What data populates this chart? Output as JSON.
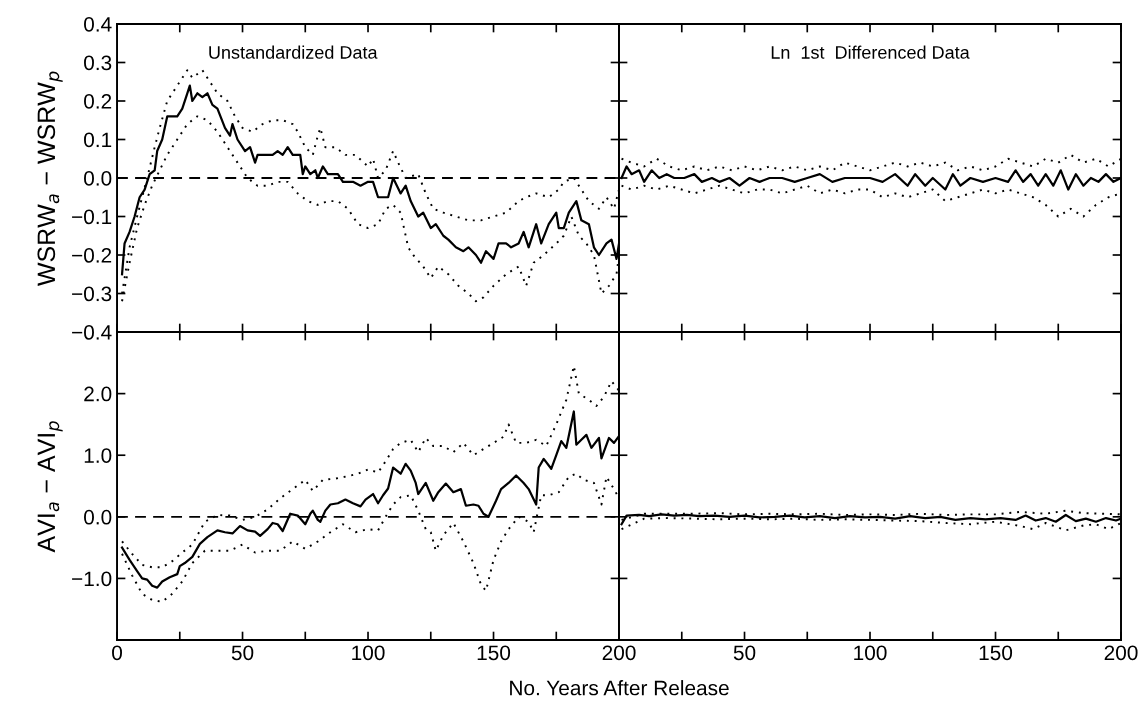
{
  "chart_data": [
    {
      "type": "line",
      "title": "Unstandardized Data",
      "ylabel": "WSRW$_{a}$ − WSRW$_{p}$",
      "xlim": [
        0,
        200
      ],
      "ylim": [
        -0.4,
        0.4
      ],
      "xticks": [
        0,
        {
          "value": 25,
          "label": null
        },
        50,
        {
          "value": 75,
          "label": null
        },
        100,
        {
          "value": 125,
          "label": null
        },
        150,
        {
          "value": 175,
          "label": null
        },
        200
      ],
      "yticks": [
        {
          "value": -0.4,
          "label": "−0.4"
        },
        {
          "value": -0.3,
          "label": "−0.3"
        },
        {
          "value": -0.2,
          "label": "−0.2"
        },
        {
          "value": -0.1,
          "label": "−0.1"
        },
        {
          "value": 0,
          "label": "0.0"
        },
        0.1,
        0.2,
        0.3,
        0.4
      ],
      "tick_labels": "y",
      "ref_lines": [
        {
          "axis": "y",
          "value": 0,
          "color": "#000000",
          "line_style": "dashed"
        }
      ],
      "series": [
        {
          "color": "#000000",
          "line_style": "solid",
          "x": [
            2,
            3,
            5,
            7,
            9,
            11,
            13,
            15,
            16,
            18,
            19,
            20,
            24,
            26,
            28,
            29,
            30,
            32,
            34,
            36,
            38,
            40,
            43,
            45,
            46,
            48,
            51,
            53,
            55,
            56,
            62,
            64,
            66,
            68,
            70,
            73,
            74,
            75,
            77,
            79,
            80,
            82,
            84,
            88,
            90,
            94,
            97,
            100,
            102,
            104,
            108,
            110,
            113,
            115,
            117,
            120,
            122,
            125,
            127,
            130,
            132,
            135,
            138,
            140,
            143,
            145,
            147,
            150,
            152,
            155,
            157,
            160,
            162,
            164,
            167,
            169,
            172,
            175,
            176,
            178,
            180,
            183,
            185,
            188,
            190,
            192,
            195,
            197,
            199,
            200
          ],
          "values": [
            -0.25,
            -0.17,
            -0.14,
            -0.1,
            -0.05,
            -0.03,
            0.01,
            0.02,
            0.07,
            0.1,
            0.13,
            0.16,
            0.16,
            0.18,
            0.22,
            0.24,
            0.2,
            0.22,
            0.21,
            0.22,
            0.19,
            0.18,
            0.13,
            0.11,
            0.14,
            0.1,
            0.07,
            0.08,
            0.04,
            0.06,
            0.06,
            0.07,
            0.06,
            0.08,
            0.06,
            0.06,
            0.01,
            0.03,
            0.01,
            0.02,
            0.0,
            0.03,
            0.01,
            0.01,
            -0.01,
            -0.01,
            -0.02,
            -0.01,
            -0.01,
            -0.05,
            -0.05,
            0.0,
            -0.04,
            -0.02,
            -0.06,
            -0.1,
            -0.09,
            -0.13,
            -0.12,
            -0.15,
            -0.16,
            -0.18,
            -0.19,
            -0.18,
            -0.2,
            -0.22,
            -0.19,
            -0.21,
            -0.17,
            -0.17,
            -0.18,
            -0.17,
            -0.14,
            -0.18,
            -0.12,
            -0.17,
            -0.12,
            -0.09,
            -0.13,
            -0.13,
            -0.09,
            -0.06,
            -0.11,
            -0.12,
            -0.18,
            -0.2,
            -0.17,
            -0.16,
            -0.21,
            -0.17
          ]
        },
        {
          "color": "#000000",
          "line_style": "dotted",
          "x": [
            2,
            5,
            8,
            10,
            12,
            15,
            17,
            20,
            24,
            28,
            30,
            34,
            37,
            40,
            44,
            47,
            50,
            54,
            58,
            62,
            66,
            70,
            72,
            75,
            78,
            80,
            81,
            83,
            87,
            91,
            95,
            100,
            102,
            104,
            107,
            110,
            112,
            115,
            120,
            123,
            126,
            130,
            135,
            140,
            145,
            150,
            155,
            160,
            163,
            167,
            172,
            176,
            178,
            182,
            185,
            188,
            192,
            195,
            198,
            200
          ],
          "values": [
            -0.3,
            -0.18,
            -0.1,
            -0.05,
            0.0,
            0.08,
            0.13,
            0.2,
            0.24,
            0.28,
            0.26,
            0.28,
            0.25,
            0.22,
            0.2,
            0.16,
            0.13,
            0.12,
            0.14,
            0.15,
            0.15,
            0.14,
            0.12,
            0.08,
            0.06,
            0.11,
            0.13,
            0.08,
            0.08,
            0.06,
            0.06,
            0.03,
            0.05,
            0.0,
            0.02,
            0.07,
            0.04,
            0.0,
            0.01,
            -0.04,
            -0.08,
            -0.09,
            -0.1,
            -0.11,
            -0.11,
            -0.1,
            -0.09,
            -0.06,
            -0.05,
            -0.04,
            -0.05,
            -0.03,
            -0.01,
            0.0,
            -0.03,
            -0.06,
            -0.08,
            -0.05,
            -0.08,
            -0.03
          ]
        },
        {
          "color": "#000000",
          "line_style": "dotted",
          "x": [
            2,
            5,
            8,
            11,
            14,
            17,
            20,
            24,
            28,
            32,
            36,
            40,
            44,
            48,
            52,
            56,
            60,
            64,
            68,
            72,
            76,
            80,
            84,
            88,
            92,
            96,
            100,
            104,
            107,
            110,
            113,
            116,
            118,
            122,
            125,
            128,
            132,
            136,
            140,
            143,
            146,
            150,
            155,
            160,
            163,
            166,
            170,
            175,
            178,
            181,
            184,
            187,
            190,
            193,
            196,
            199,
            200
          ],
          "values": [
            -0.32,
            -0.22,
            -0.13,
            -0.07,
            -0.02,
            0.02,
            0.06,
            0.1,
            0.14,
            0.16,
            0.15,
            0.12,
            0.08,
            0.04,
            0.0,
            -0.02,
            -0.02,
            -0.01,
            -0.01,
            -0.04,
            -0.06,
            -0.07,
            -0.06,
            -0.06,
            -0.08,
            -0.12,
            -0.13,
            -0.12,
            -0.08,
            -0.07,
            -0.09,
            -0.18,
            -0.2,
            -0.23,
            -0.26,
            -0.23,
            -0.25,
            -0.28,
            -0.3,
            -0.32,
            -0.31,
            -0.28,
            -0.25,
            -0.23,
            -0.28,
            -0.22,
            -0.2,
            -0.17,
            -0.15,
            -0.1,
            -0.15,
            -0.17,
            -0.2,
            -0.3,
            -0.28,
            -0.25,
            -0.2
          ]
        }
      ]
    },
    {
      "type": "line",
      "title": "Ln  1st  Differenced Data",
      "xlim": [
        0,
        200
      ],
      "ylim": [
        -0.4,
        0.4
      ],
      "xticks": [
        {
          "value": 0,
          "label": null
        },
        {
          "value": 25,
          "label": null
        },
        50,
        {
          "value": 75,
          "label": null
        },
        100,
        {
          "value": 125,
          "label": null
        },
        150,
        {
          "value": 175,
          "label": null
        },
        200
      ],
      "yticks": [
        -0.4,
        -0.3,
        -0.2,
        -0.1,
        0,
        0.1,
        0.2,
        0.3,
        0.4
      ],
      "tick_labels": false,
      "series": [
        {
          "color": "#000000",
          "line_style": "solid",
          "x": [
            1,
            3,
            5,
            8,
            10,
            13,
            16,
            19,
            22,
            26,
            30,
            33,
            37,
            40,
            44,
            48,
            52,
            56,
            60,
            65,
            70,
            75,
            80,
            85,
            90,
            95,
            100,
            105,
            110,
            115,
            118,
            122,
            125,
            130,
            133,
            136,
            140,
            145,
            150,
            155,
            158,
            161,
            164,
            167,
            170,
            173,
            176,
            179,
            182,
            185,
            188,
            191,
            194,
            197,
            200
          ],
          "values": [
            0.0,
            0.03,
            0.01,
            0.02,
            -0.01,
            0.02,
            0.0,
            0.01,
            0.0,
            0.0,
            0.01,
            -0.01,
            0.0,
            -0.01,
            0.0,
            -0.02,
            0.0,
            -0.01,
            0.0,
            0.0,
            -0.01,
            0.0,
            0.01,
            -0.01,
            0.0,
            0.0,
            0.0,
            -0.01,
            0.01,
            -0.02,
            0.01,
            -0.02,
            0.0,
            -0.03,
            0.01,
            -0.02,
            0.0,
            -0.01,
            0.0,
            -0.01,
            0.02,
            -0.01,
            0.01,
            -0.02,
            0.01,
            -0.02,
            0.02,
            -0.03,
            0.01,
            -0.02,
            0.0,
            -0.01,
            0.01,
            -0.01,
            0.0
          ]
        },
        {
          "color": "#000000",
          "line_style": "dotted",
          "x": [
            1,
            5,
            10,
            15,
            20,
            25,
            30,
            35,
            40,
            45,
            50,
            55,
            60,
            65,
            70,
            75,
            80,
            85,
            90,
            95,
            100,
            105,
            110,
            115,
            120,
            125,
            130,
            135,
            140,
            145,
            150,
            155,
            160,
            165,
            170,
            175,
            180,
            185,
            190,
            195,
            200
          ],
          "values": [
            0.05,
            0.04,
            0.03,
            0.05,
            0.03,
            0.02,
            0.03,
            0.02,
            0.03,
            0.02,
            0.03,
            0.02,
            0.03,
            0.02,
            0.03,
            0.02,
            0.03,
            0.02,
            0.04,
            0.03,
            0.02,
            0.03,
            0.04,
            0.03,
            0.04,
            0.03,
            0.04,
            0.02,
            0.03,
            0.02,
            0.03,
            0.05,
            0.04,
            0.03,
            0.05,
            0.04,
            0.06,
            0.04,
            0.05,
            0.03,
            0.05
          ]
        },
        {
          "color": "#000000",
          "line_style": "dotted",
          "x": [
            1,
            5,
            10,
            15,
            20,
            25,
            30,
            35,
            40,
            45,
            50,
            55,
            60,
            65,
            70,
            75,
            80,
            85,
            90,
            95,
            100,
            105,
            110,
            115,
            120,
            125,
            130,
            135,
            140,
            145,
            150,
            155,
            160,
            165,
            170,
            175,
            180,
            185,
            190,
            195,
            200
          ],
          "values": [
            -0.02,
            -0.03,
            -0.02,
            -0.03,
            -0.02,
            -0.03,
            -0.04,
            -0.03,
            -0.02,
            -0.03,
            -0.04,
            -0.03,
            -0.03,
            -0.04,
            -0.03,
            -0.02,
            -0.04,
            -0.03,
            -0.04,
            -0.03,
            -0.03,
            -0.05,
            -0.04,
            -0.05,
            -0.04,
            -0.03,
            -0.06,
            -0.05,
            -0.04,
            -0.03,
            -0.04,
            -0.03,
            -0.04,
            -0.05,
            -0.07,
            -0.1,
            -0.08,
            -0.1,
            -0.07,
            -0.05,
            -0.04
          ]
        }
      ]
    },
    {
      "type": "line",
      "xlabel": "No. Years After Release",
      "ylabel": "AVI$_{a}$ − AVI$_{p}$",
      "xlim": [
        0,
        200
      ],
      "ylim": [
        -2,
        3
      ],
      "xticks": [
        0,
        {
          "value": 25,
          "label": null
        },
        50,
        {
          "value": 75,
          "label": null
        },
        100,
        {
          "value": 125,
          "label": null
        },
        150,
        {
          "value": 175,
          "label": null
        },
        200
      ],
      "yticks": [
        {
          "value": -1,
          "label": "−1.0"
        },
        {
          "value": 0,
          "label": "0.0"
        },
        {
          "value": 1,
          "label": "1.0"
        },
        {
          "value": 2,
          "label": "2.0"
        }
      ],
      "ref_lines": [
        {
          "axis": "y",
          "value": 0,
          "color": "#000000",
          "line_style": "dashed"
        }
      ],
      "series": [
        {
          "color": "#000000",
          "line_style": "solid",
          "x": [
            2,
            5,
            8,
            10,
            12,
            14,
            16,
            18,
            21,
            24,
            25,
            27,
            30,
            33,
            36,
            40,
            43,
            46,
            49,
            52,
            55,
            57,
            60,
            62,
            64,
            66,
            69,
            72,
            75,
            77,
            78,
            80,
            81,
            83,
            85,
            88,
            91,
            94,
            97,
            99,
            102,
            104,
            106,
            108,
            110,
            113,
            115,
            117,
            119,
            120,
            123,
            126,
            128,
            131,
            134,
            137,
            139,
            142,
            144,
            146,
            148,
            151,
            153,
            156,
            159,
            162,
            164,
            167,
            168,
            170,
            173,
            175,
            177,
            179,
            182,
            183,
            185,
            187,
            189,
            192,
            193,
            196,
            198,
            200
          ],
          "values": [
            -0.5,
            -0.7,
            -0.88,
            -1.0,
            -1.02,
            -1.12,
            -1.15,
            -1.05,
            -0.98,
            -0.93,
            -0.8,
            -0.75,
            -0.65,
            -0.44,
            -0.33,
            -0.22,
            -0.25,
            -0.27,
            -0.15,
            -0.22,
            -0.24,
            -0.31,
            -0.2,
            -0.1,
            -0.12,
            -0.23,
            0.05,
            0.02,
            -0.12,
            0.05,
            0.1,
            -0.05,
            -0.08,
            0.1,
            0.2,
            0.22,
            0.28,
            0.22,
            0.17,
            0.28,
            0.37,
            0.22,
            0.35,
            0.46,
            0.8,
            0.7,
            0.86,
            0.75,
            0.55,
            0.37,
            0.55,
            0.26,
            0.4,
            0.54,
            0.4,
            0.45,
            0.18,
            0.2,
            0.18,
            0.05,
            0.0,
            0.26,
            0.45,
            0.55,
            0.67,
            0.55,
            0.45,
            0.2,
            0.8,
            0.94,
            0.78,
            1.0,
            1.23,
            1.12,
            1.71,
            1.17,
            1.25,
            1.33,
            1.12,
            1.28,
            0.95,
            1.28,
            1.2,
            1.31
          ]
        },
        {
          "color": "#000000",
          "line_style": "dotted",
          "x": [
            2,
            6,
            10,
            14,
            18,
            22,
            26,
            30,
            35,
            40,
            45,
            50,
            55,
            60,
            65,
            70,
            75,
            78,
            82,
            87,
            92,
            96,
            100,
            104,
            107,
            110,
            113,
            117,
            120,
            123,
            126,
            130,
            134,
            138,
            142,
            146,
            150,
            154,
            156,
            159,
            163,
            167,
            171,
            175,
            179,
            182,
            184,
            188,
            191,
            194,
            197,
            200
          ],
          "values": [
            -0.4,
            -0.6,
            -0.78,
            -0.82,
            -0.82,
            -0.72,
            -0.58,
            -0.45,
            -0.08,
            0.03,
            0.02,
            -0.05,
            0.0,
            0.12,
            0.3,
            0.45,
            0.6,
            0.42,
            0.6,
            0.62,
            0.66,
            0.7,
            0.77,
            0.72,
            0.9,
            1.1,
            1.2,
            1.25,
            1.05,
            1.28,
            1.15,
            1.15,
            1.05,
            1.2,
            1.0,
            1.1,
            1.2,
            1.3,
            1.5,
            1.2,
            1.2,
            1.25,
            1.15,
            1.5,
            1.9,
            2.45,
            2.0,
            1.9,
            1.8,
            1.95,
            2.2,
            2.05
          ]
        },
        {
          "color": "#000000",
          "line_style": "dotted",
          "x": [
            2,
            6,
            10,
            14,
            18,
            22,
            26,
            30,
            35,
            40,
            45,
            50,
            55,
            60,
            65,
            70,
            75,
            80,
            85,
            90,
            95,
            100,
            104,
            107,
            110,
            113,
            117,
            120,
            123,
            125,
            127,
            130,
            134,
            138,
            142,
            145,
            147,
            150,
            153,
            156,
            160,
            164,
            166,
            169,
            172,
            176,
            180,
            183,
            186,
            190,
            193,
            195,
            198,
            200
          ],
          "values": [
            -0.6,
            -0.95,
            -1.25,
            -1.35,
            -1.38,
            -1.25,
            -1.05,
            -0.75,
            -0.55,
            -0.55,
            -0.55,
            -0.45,
            -0.58,
            -0.55,
            -0.55,
            -0.4,
            -0.52,
            -0.4,
            -0.25,
            -0.12,
            -0.25,
            -0.2,
            -0.22,
            0.0,
            0.2,
            0.32,
            0.35,
            0.1,
            -0.2,
            -0.25,
            -0.55,
            -0.3,
            -0.1,
            -0.4,
            -0.75,
            -1.1,
            -1.2,
            -0.7,
            -0.4,
            -0.2,
            0.0,
            -0.08,
            -0.25,
            0.35,
            0.35,
            0.4,
            0.65,
            0.7,
            0.6,
            0.55,
            0.2,
            0.65,
            0.45,
            0.3
          ]
        }
      ]
    },
    {
      "type": "line",
      "xlim": [
        0,
        200
      ],
      "ylim": [
        -2,
        3
      ],
      "xticks": [
        {
          "value": 0,
          "label": null
        },
        {
          "value": 25,
          "label": null
        },
        50,
        {
          "value": 75,
          "label": null
        },
        100,
        {
          "value": 125,
          "label": null
        },
        150,
        {
          "value": 175,
          "label": null
        },
        200
      ],
      "yticks": [
        -1,
        0,
        1,
        2
      ],
      "tick_labels": "x",
      "series": [
        {
          "color": "#000000",
          "line_style": "solid",
          "x": [
            1,
            3,
            8,
            12,
            17,
            22,
            27,
            32,
            38,
            44,
            50,
            56,
            62,
            68,
            74,
            80,
            86,
            92,
            98,
            104,
            110,
            116,
            122,
            128,
            134,
            140,
            146,
            152,
            158,
            162,
            166,
            170,
            174,
            178,
            182,
            186,
            190,
            194,
            198,
            200
          ],
          "values": [
            -0.12,
            0.02,
            0.03,
            0.01,
            0.04,
            0.02,
            0.03,
            0.01,
            0.02,
            0.0,
            0.02,
            -0.01,
            0.0,
            0.02,
            -0.01,
            0.01,
            -0.02,
            0.01,
            -0.01,
            0.0,
            -0.03,
            0.01,
            -0.02,
            0.0,
            -0.05,
            -0.02,
            -0.04,
            -0.02,
            -0.05,
            0.02,
            -0.06,
            -0.02,
            -0.08,
            0.03,
            -0.07,
            -0.03,
            -0.08,
            -0.02,
            -0.06,
            -0.03
          ]
        },
        {
          "color": "#000000",
          "line_style": "dotted",
          "x": [
            1,
            10,
            20,
            30,
            40,
            50,
            60,
            70,
            80,
            90,
            100,
            110,
            120,
            130,
            140,
            150,
            160,
            170,
            178,
            185,
            192,
            200
          ],
          "values": [
            -0.05,
            0.05,
            0.05,
            0.05,
            0.06,
            0.04,
            0.05,
            0.04,
            0.05,
            0.03,
            0.04,
            0.03,
            0.05,
            0.03,
            0.04,
            0.04,
            0.08,
            0.05,
            0.1,
            0.06,
            0.05,
            0.04
          ]
        },
        {
          "color": "#000000",
          "line_style": "dotted",
          "x": [
            1,
            10,
            20,
            30,
            40,
            50,
            60,
            70,
            80,
            90,
            100,
            110,
            120,
            130,
            140,
            150,
            160,
            165,
            170,
            178,
            185,
            190,
            195,
            200
          ],
          "values": [
            -0.2,
            -0.03,
            -0.02,
            -0.03,
            -0.04,
            -0.03,
            -0.04,
            -0.03,
            -0.05,
            -0.04,
            -0.05,
            -0.06,
            -0.07,
            -0.1,
            -0.12,
            -0.08,
            -0.15,
            -0.2,
            -0.1,
            -0.22,
            -0.14,
            -0.12,
            -0.2,
            -0.1
          ]
        }
      ]
    }
  ]
}
